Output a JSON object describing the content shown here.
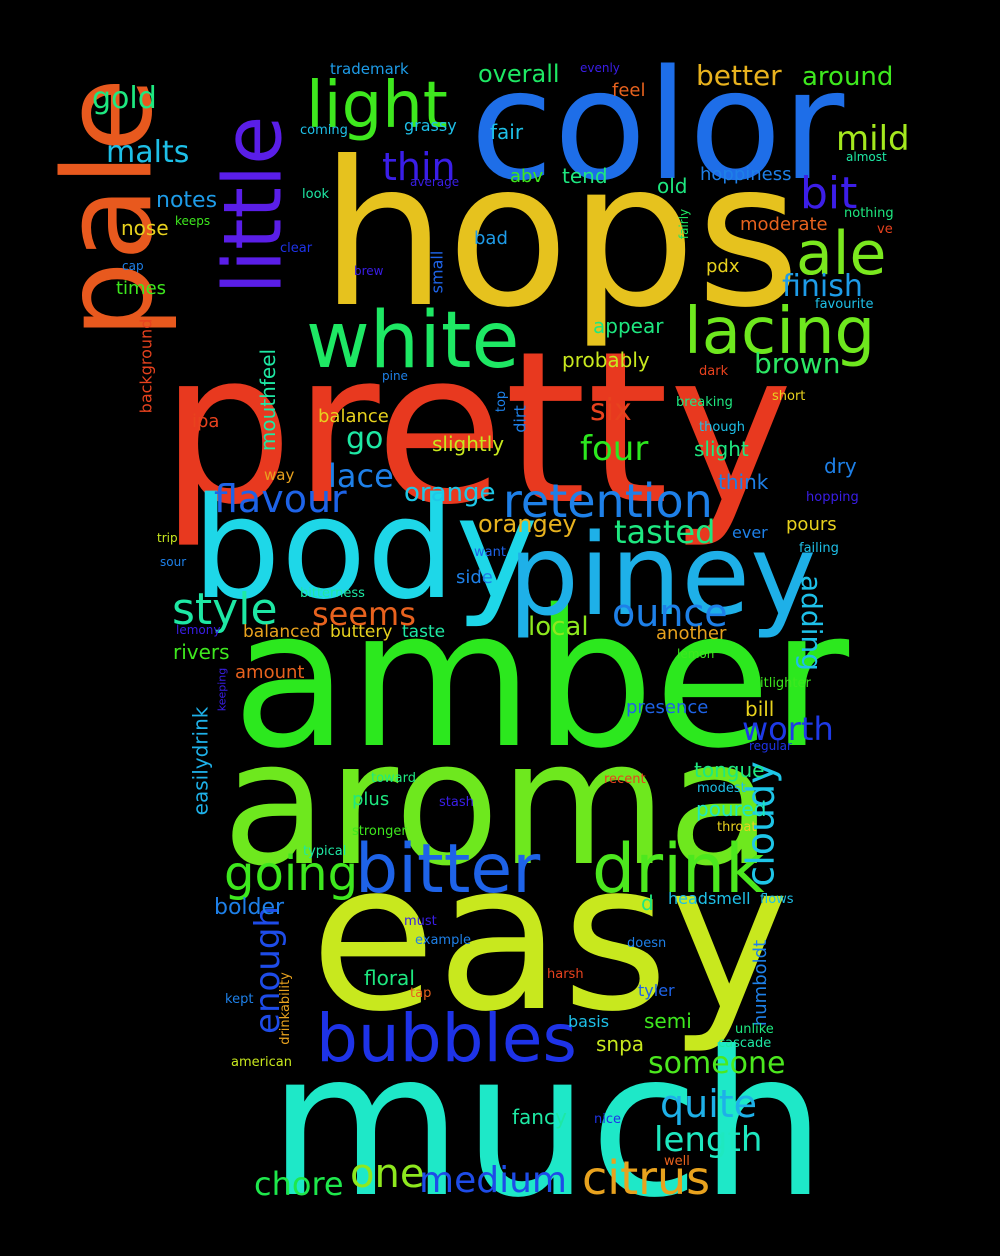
{
  "words": [
    {
      "text": "pretty",
      "color": "#e8391f"
    },
    {
      "text": "hops",
      "color": "#e6c21e"
    },
    {
      "text": "amber",
      "color": "#2ce81e"
    },
    {
      "text": "easy",
      "color": "#c8e81e"
    },
    {
      "text": "much",
      "color": "#1ee8c8"
    },
    {
      "text": "aroma",
      "color": "#6ee81e"
    },
    {
      "text": "color",
      "color": "#1e6ee8"
    },
    {
      "text": "body",
      "color": "#1ed7e8"
    },
    {
      "text": "piney",
      "color": "#1eb0e8"
    },
    {
      "text": "pale",
      "color": "#e8591e"
    },
    {
      "text": "little",
      "color": "#5a1ee8"
    },
    {
      "text": "white",
      "color": "#1ee864"
    },
    {
      "text": "bitter",
      "color": "#1e63e8"
    },
    {
      "text": "drink",
      "color": "#4ce81e"
    },
    {
      "text": "bubbles",
      "color": "#1e33e8"
    },
    {
      "text": "light",
      "color": "#3ee81e"
    },
    {
      "text": "lacing",
      "color": "#6ee81e"
    },
    {
      "text": "ale",
      "color": "#7ae81e"
    },
    {
      "text": "retention",
      "color": "#1e80e8"
    },
    {
      "text": "going",
      "color": "#3ee81e"
    },
    {
      "text": "citrus",
      "color": "#e8a21e"
    },
    {
      "text": "style",
      "color": "#1ee8a4"
    },
    {
      "text": "cloudy",
      "color": "#1ec5e8"
    },
    {
      "text": "flavour",
      "color": "#1e63e8"
    },
    {
      "text": "ounce",
      "color": "#1e80e8"
    },
    {
      "text": "quite",
      "color": "#1eb0e8"
    },
    {
      "text": "length",
      "color": "#1ee8c0"
    },
    {
      "text": "medium",
      "color": "#1e4ce8"
    },
    {
      "text": "bit",
      "color": "#3c1ee8"
    },
    {
      "text": "one",
      "color": "#8ee81e"
    },
    {
      "text": "thin",
      "color": "#3a1ee8"
    },
    {
      "text": "chore",
      "color": "#1ee84c"
    },
    {
      "text": "enough",
      "color": "#1e4ce8"
    },
    {
      "text": "tasted",
      "color": "#1ee880"
    },
    {
      "text": "someone",
      "color": "#4ce81e"
    },
    {
      "text": "lace",
      "color": "#1e80e8"
    },
    {
      "text": "worth",
      "color": "#1e3ae8"
    },
    {
      "text": "four",
      "color": "#2ce81e"
    },
    {
      "text": "seems",
      "color": "#e8621e"
    },
    {
      "text": "mild",
      "color": "#a4e81e"
    },
    {
      "text": "malts",
      "color": "#1ec0e8"
    },
    {
      "text": "finish",
      "color": "#1e9ce8"
    },
    {
      "text": "brown",
      "color": "#2ce864"
    },
    {
      "text": "gold",
      "color": "#1ee880"
    },
    {
      "text": "better",
      "color": "#e8b21e"
    },
    {
      "text": "adding",
      "color": "#1ec0e8"
    },
    {
      "text": "six",
      "color": "#e8421e"
    },
    {
      "text": "orange",
      "color": "#1ec8e8"
    },
    {
      "text": "around",
      "color": "#3ee81e"
    },
    {
      "text": "local",
      "color": "#8ee81e"
    },
    {
      "text": "overall",
      "color": "#1ee864"
    },
    {
      "text": "go",
      "color": "#1ee8a4"
    },
    {
      "text": "orangey",
      "color": "#e8b21e"
    },
    {
      "text": "mouthfeel",
      "color": "#1ee8a4"
    },
    {
      "text": "easilydrink",
      "color": "#1eb0e8"
    },
    {
      "text": "bolder",
      "color": "#1e80e8"
    },
    {
      "text": "notes",
      "color": "#1e9ce8"
    },
    {
      "text": "fancy",
      "color": "#1ee8a4"
    },
    {
      "text": "humboldt",
      "color": "#1e80e8"
    },
    {
      "text": "snpa",
      "color": "#c8e81e"
    },
    {
      "text": "semi",
      "color": "#3ee81e"
    },
    {
      "text": "floral",
      "color": "#1ee880"
    },
    {
      "text": "slightly",
      "color": "#c8e81e"
    },
    {
      "text": "tongue",
      "color": "#1ee880"
    },
    {
      "text": "poured",
      "color": "#1ee8c0"
    },
    {
      "text": "appear",
      "color": "#1ee880"
    },
    {
      "text": "probably",
      "color": "#c8e81e"
    },
    {
      "text": "rivers",
      "color": "#3ee81e"
    },
    {
      "text": "bill",
      "color": "#e8d21e"
    },
    {
      "text": "nose",
      "color": "#e8d21e"
    },
    {
      "text": "hoppiness",
      "color": "#1e80e8"
    },
    {
      "text": "old",
      "color": "#1ee880"
    },
    {
      "text": "tend",
      "color": "#1ee880"
    },
    {
      "text": "abv",
      "color": "#3ee81e"
    },
    {
      "text": "fair",
      "color": "#1ec0e8"
    },
    {
      "text": "slight",
      "color": "#1ee880"
    },
    {
      "text": "think",
      "color": "#1e80e8"
    },
    {
      "text": "dry",
      "color": "#1e80e8"
    },
    {
      "text": "pours",
      "color": "#e8d21e"
    },
    {
      "text": "side",
      "color": "#1e80e8"
    },
    {
      "text": "another",
      "color": "#e8a21e"
    },
    {
      "text": "presence",
      "color": "#1e63e8"
    },
    {
      "text": "plus",
      "color": "#1ee880"
    },
    {
      "text": "balance",
      "color": "#e8d21e"
    },
    {
      "text": "bad",
      "color": "#1e9ce8"
    },
    {
      "text": "moderate",
      "color": "#e8621e"
    },
    {
      "text": "pdx",
      "color": "#e8d21e"
    },
    {
      "text": "times",
      "color": "#3ee81e"
    },
    {
      "text": "amount",
      "color": "#e8621e"
    },
    {
      "text": "balanced",
      "color": "#e8a21e"
    },
    {
      "text": "buttery",
      "color": "#e8d21e"
    },
    {
      "text": "taste",
      "color": "#1ee8a4"
    },
    {
      "text": "feel",
      "color": "#e8621e"
    },
    {
      "text": "grassy",
      "color": "#1ec0e8"
    },
    {
      "text": "headsmell",
      "color": "#1ec0e8"
    },
    {
      "text": "basis",
      "color": "#1ec0e8"
    },
    {
      "text": "tyler",
      "color": "#1e63e8"
    },
    {
      "text": "d",
      "color": "#1ee880"
    },
    {
      "text": "ever",
      "color": "#1e80e8"
    },
    {
      "text": "dirt",
      "color": "#1e80e8"
    },
    {
      "text": "background",
      "color": "#e8421e"
    },
    {
      "text": "drinkability",
      "color": "#e8a21e"
    },
    {
      "text": "small",
      "color": "#1e63e8"
    },
    {
      "text": "trademark",
      "color": "#1e9ce8"
    },
    {
      "text": "coming",
      "color": "#1ec0e8"
    },
    {
      "text": "evenly",
      "color": "#3a1ee8"
    },
    {
      "text": "almost",
      "color": "#1ee8a4"
    },
    {
      "text": "look",
      "color": "#1ee8a4"
    },
    {
      "text": "average",
      "color": "#3a1ee8"
    },
    {
      "text": "keeps",
      "color": "#3ee81e"
    },
    {
      "text": "fairly",
      "color": "#1ee864"
    },
    {
      "text": "nothing",
      "color": "#1ee880"
    },
    {
      "text": "clear",
      "color": "#1e33e8"
    },
    {
      "text": "ve",
      "color": "#e8421e"
    },
    {
      "text": "cap",
      "color": "#1e80e8"
    },
    {
      "text": "brew",
      "color": "#3a1ee8"
    },
    {
      "text": "favourite",
      "color": "#1ec0e8"
    },
    {
      "text": "pine",
      "color": "#1e80e8"
    },
    {
      "text": "dark",
      "color": "#e8421e"
    },
    {
      "text": "short",
      "color": "#e8d21e"
    },
    {
      "text": "ipa",
      "color": "#e8421e"
    },
    {
      "text": "top",
      "color": "#1e80e8"
    },
    {
      "text": "breaking",
      "color": "#1ee880"
    },
    {
      "text": "though",
      "color": "#1ec0e8"
    },
    {
      "text": "way",
      "color": "#e8a21e"
    },
    {
      "text": "hopping",
      "color": "#3a1ee8"
    },
    {
      "text": "trip",
      "color": "#c8e81e"
    },
    {
      "text": "want",
      "color": "#1e63e8"
    },
    {
      "text": "failing",
      "color": "#1ec0e8"
    },
    {
      "text": "sour",
      "color": "#1e80e8"
    },
    {
      "text": "bitterness",
      "color": "#1ee8a4"
    },
    {
      "text": "lemony",
      "color": "#3a1ee8"
    },
    {
      "text": "lemon",
      "color": "#3ee81e"
    },
    {
      "text": "keeping",
      "color": "#3a1ee8"
    },
    {
      "text": "itlighter",
      "color": "#3ee81e"
    },
    {
      "text": "regular",
      "color": "#1e33e8"
    },
    {
      "text": "toward",
      "color": "#1ee880"
    },
    {
      "text": "recent",
      "color": "#e8421e"
    },
    {
      "text": "modest",
      "color": "#1ec0e8"
    },
    {
      "text": "stash",
      "color": "#3a1ee8"
    },
    {
      "text": "throat",
      "color": "#e8d21e"
    },
    {
      "text": "stronger",
      "color": "#3ee81e"
    },
    {
      "text": "typical",
      "color": "#1ee8a4"
    },
    {
      "text": "flows",
      "color": "#1ec0e8"
    },
    {
      "text": "must",
      "color": "#3a1ee8"
    },
    {
      "text": "example",
      "color": "#1e80e8"
    },
    {
      "text": "doesn",
      "color": "#1e80e8"
    },
    {
      "text": "harsh",
      "color": "#e8421e"
    },
    {
      "text": "kept",
      "color": "#1e80e8"
    },
    {
      "text": "tap",
      "color": "#e8621e"
    },
    {
      "text": "unlike",
      "color": "#1ee880"
    },
    {
      "text": "cascade",
      "color": "#1ee8a4"
    },
    {
      "text": "american",
      "color": "#c8e81e"
    },
    {
      "text": "nice",
      "color": "#1e33e8"
    },
    {
      "text": "well",
      "color": "#e8621e"
    }
  ]
}
